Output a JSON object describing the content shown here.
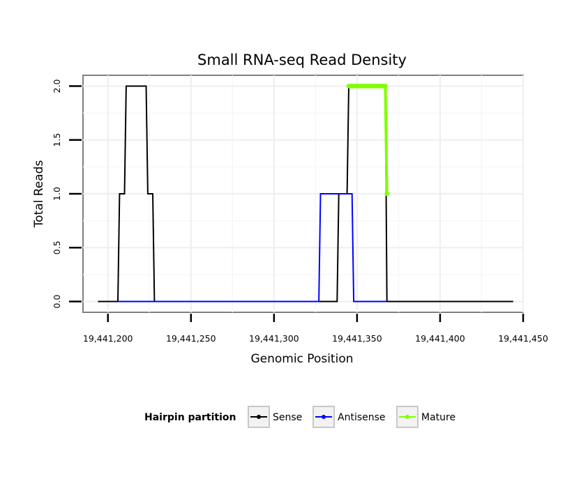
{
  "chart_data": {
    "type": "line",
    "title": "Small RNA-seq Read Density",
    "xlabel": "Genomic Position",
    "ylabel": "Total Reads",
    "xlim": [
      19441185,
      19441450
    ],
    "ylim": [
      -0.1,
      2.1
    ],
    "x_ticks": [
      19441200,
      19441250,
      19441300,
      19441350,
      19441400,
      19441450
    ],
    "x_tick_labels": [
      "19,441,200",
      "19,441,250",
      "19,441,300",
      "19,441,350",
      "19,441,400",
      "19,441,450"
    ],
    "y_ticks": [
      0,
      0.5,
      1,
      1.5,
      2
    ],
    "y_tick_labels": [
      "0.0",
      "0.5",
      "1.0",
      "1.5",
      "2.0"
    ],
    "grid": true,
    "legend_title": "Hairpin partition",
    "legend_position": "bottom",
    "series": [
      {
        "name": "Sense",
        "color": "#000000",
        "step": true,
        "x": [
          19441194,
          19441206,
          19441207,
          19441210,
          19441211,
          19441223,
          19441224,
          19441227,
          19441228,
          19441338,
          19441339,
          19441344,
          19441345,
          19441367,
          19441368,
          19441444
        ],
        "y": [
          0,
          0,
          1,
          1,
          2,
          2,
          1,
          1,
          0,
          0,
          1,
          1,
          2,
          2,
          0,
          0
        ]
      },
      {
        "name": "Antisense",
        "color": "#0000ff",
        "step": true,
        "x": [
          19441206,
          19441327,
          19441328,
          19441347,
          19441348,
          19441368
        ],
        "y": [
          0,
          0,
          1,
          1,
          0,
          0
        ]
      },
      {
        "name": "Mature",
        "color": "#7fff00",
        "step": false,
        "markers": true,
        "x": [
          19441345,
          19441346,
          19441347,
          19441348,
          19441349,
          19441350,
          19441351,
          19441352,
          19441353,
          19441354,
          19441355,
          19441356,
          19441357,
          19441358,
          19441359,
          19441360,
          19441361,
          19441362,
          19441363,
          19441364,
          19441365,
          19441366,
          19441367,
          19441368
        ],
        "y": [
          2,
          2,
          2,
          2,
          2,
          2,
          2,
          2,
          2,
          2,
          2,
          2,
          2,
          2,
          2,
          2,
          2,
          2,
          2,
          2,
          2,
          2,
          2,
          1
        ]
      }
    ]
  }
}
